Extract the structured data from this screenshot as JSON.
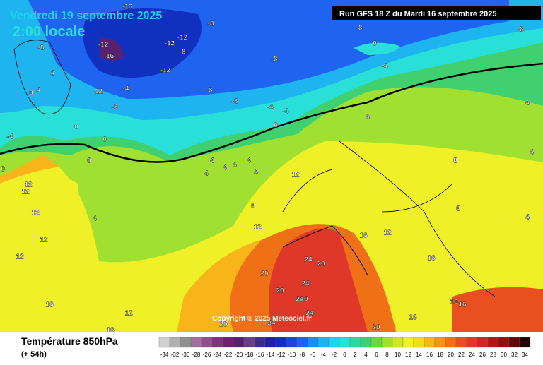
{
  "header": {
    "date": "Vendredi 19 septembre 2025",
    "time": "2:00 locale",
    "run": "Run GFS 18 Z du Mardi 16 septembre 2025"
  },
  "footer": {
    "title": "Température 850hPa",
    "subtitle": "(+ 54h)",
    "copyright": "Copyright © 2025 Meteociel.fr"
  },
  "legend": {
    "ticks": [
      -34,
      -32,
      -30,
      -28,
      -26,
      -24,
      -22,
      -20,
      -18,
      -16,
      -14,
      -12,
      -10,
      -8,
      -6,
      -4,
      -2,
      0,
      2,
      4,
      6,
      8,
      10,
      12,
      14,
      16,
      18,
      20,
      22,
      24,
      26,
      28,
      30,
      32,
      34
    ],
    "colors": [
      "#d0d0d0",
      "#b0b0b0",
      "#909090",
      "#a070a0",
      "#905090",
      "#803080",
      "#702070",
      "#5a2070",
      "#6a3c8c",
      "#3c2c8c",
      "#2020a0",
      "#1030c0",
      "#1a46d8",
      "#1e64f0",
      "#1e8cf0",
      "#1eb4f0",
      "#1ed2f0",
      "#28e0d8",
      "#30d8a0",
      "#40d070",
      "#6cd840",
      "#a0e030",
      "#d2e628",
      "#f0f028",
      "#f8d820",
      "#f8b418",
      "#f89418",
      "#f07018",
      "#e85020",
      "#e03828",
      "#c82828",
      "#b01818",
      "#901010",
      "#600808",
      "#200000"
    ]
  },
  "contour_labels": [
    -16,
    -8,
    -12,
    -12,
    -12,
    -16,
    -8,
    -8,
    -12,
    4,
    -12,
    -4,
    -8,
    -8,
    -8,
    0,
    4,
    -4,
    -4,
    0,
    0,
    0,
    0,
    -4,
    0,
    -8,
    -8,
    0,
    -4,
    -8,
    4,
    4,
    4,
    4,
    4,
    4,
    4,
    4,
    12,
    12,
    12,
    12,
    4,
    12,
    12,
    8,
    12,
    16,
    16,
    12,
    16,
    12,
    8,
    8,
    16,
    20,
    20,
    24,
    20,
    24,
    20,
    24,
    24,
    24,
    20,
    20,
    16,
    16,
    16,
    4,
    4
  ]
}
